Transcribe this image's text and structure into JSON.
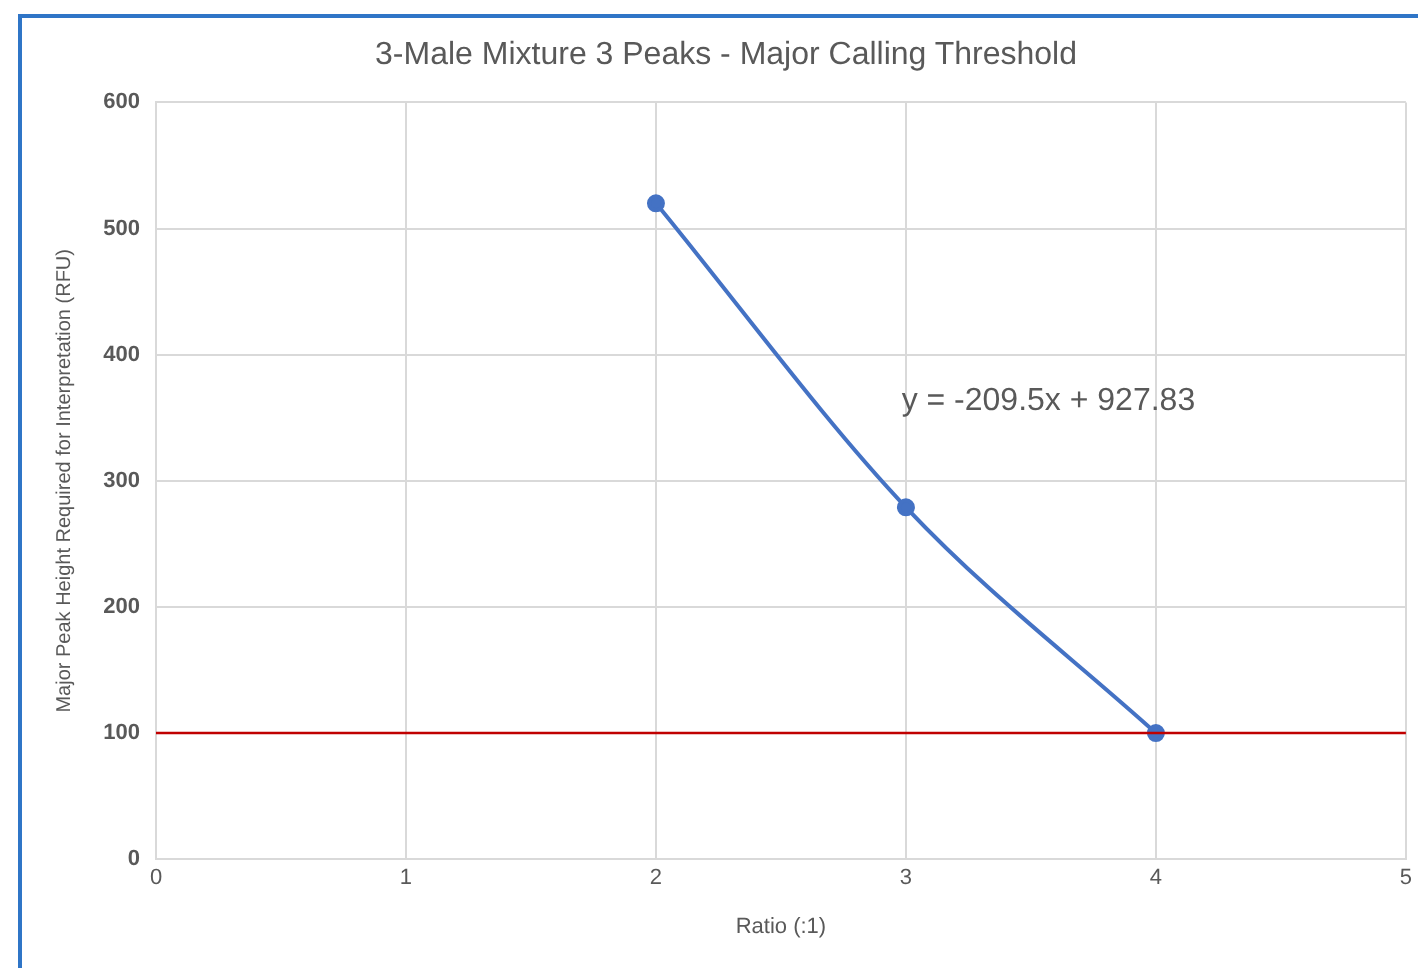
{
  "chart_data": {
    "type": "line",
    "title": "3-Male Mixture 3 Peaks - Major Calling Threshold",
    "xlabel": "Ratio (:1)",
    "ylabel": "Major Peak Height Required for Interpretation (RFU)",
    "x": [
      2,
      3,
      4
    ],
    "series": [
      {
        "color": "#4472c4",
        "values": [
          520,
          279,
          100
        ]
      }
    ],
    "xlim": [
      0,
      5
    ],
    "xticks": [
      0,
      1,
      2,
      3,
      4,
      5
    ],
    "ylim": [
      0,
      600
    ],
    "yticks": [
      0,
      100,
      200,
      300,
      400,
      500,
      600
    ],
    "ref_lines": [
      {
        "axis": "y",
        "value": 100,
        "color": "#c00000"
      }
    ],
    "annotations": [
      "y = -209.5x + 927.83"
    ],
    "grid": true,
    "legend": false,
    "marker": "circle",
    "line_style": "solid"
  }
}
